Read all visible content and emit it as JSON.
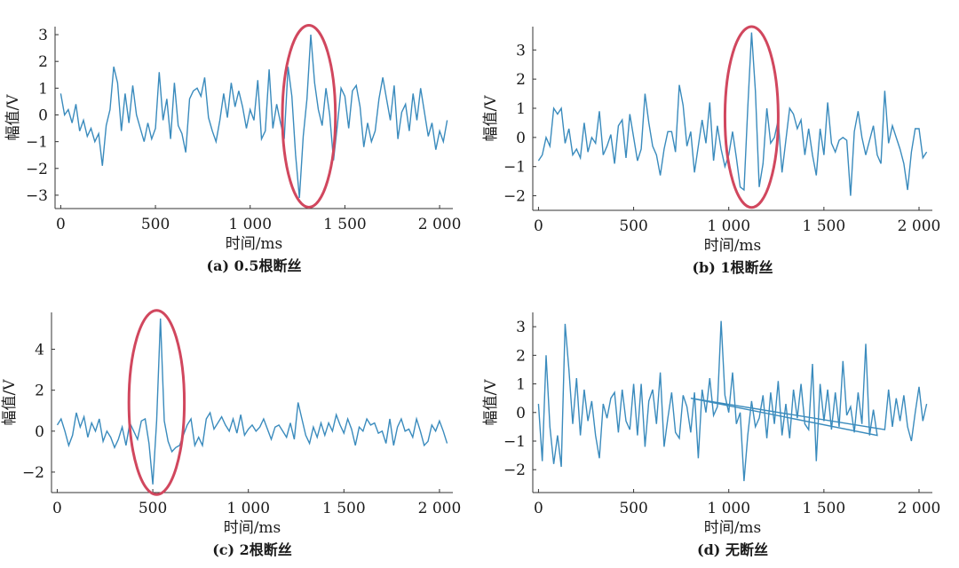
{
  "style": {
    "line_color": "#3a8bbd",
    "highlight_color": "#d1475e"
  },
  "chart_data": [
    {
      "id": "a",
      "type": "line",
      "caption": "(a) 0.5根断丝",
      "xlabel": "时间/ms",
      "ylabel": "幅值/V",
      "xlim": [
        -30,
        2070
      ],
      "ylim": [
        -3.5,
        3.3
      ],
      "xticks": [
        0,
        500,
        1000,
        1500,
        2000
      ],
      "xtick_labels": [
        "0",
        "500",
        "1 000",
        "1 500",
        "2 000"
      ],
      "yticks": [
        -3,
        -2,
        -1,
        0,
        1,
        2,
        3
      ],
      "ytick_labels": [
        "−3",
        "−2",
        "−1",
        "0",
        "1",
        "2",
        "3"
      ],
      "highlight": {
        "cx": 1310,
        "cy": -0.05,
        "rx": 140,
        "ry": 3.4
      },
      "series": [
        {
          "x": [
            0,
            20,
            40,
            60,
            80,
            100,
            120,
            140,
            160,
            180,
            200,
            220,
            240,
            260,
            280,
            300,
            320,
            340,
            360,
            380,
            400,
            420,
            440,
            460,
            480,
            500,
            520,
            540,
            560,
            580,
            600,
            620,
            640,
            660,
            680,
            700,
            720,
            740,
            760,
            780,
            800,
            820,
            840,
            860,
            880,
            900,
            920,
            940,
            960,
            980,
            1000,
            1020,
            1040,
            1060,
            1080,
            1100,
            1120,
            1140,
            1160,
            1180,
            1200,
            1220,
            1240,
            1260,
            1280,
            1300,
            1320,
            1340,
            1360,
            1380,
            1400,
            1420,
            1440,
            1460,
            1480,
            1500,
            1520,
            1540,
            1560,
            1580,
            1600,
            1620,
            1640,
            1660,
            1680,
            1700,
            1720,
            1740,
            1760,
            1780,
            1800,
            1820,
            1840,
            1860,
            1880,
            1900,
            1920,
            1940,
            1960,
            1980,
            2000,
            2020,
            2040
          ],
          "y": [
            0.8,
            0.0,
            0.2,
            -0.3,
            0.4,
            -0.6,
            -0.2,
            -0.8,
            -0.5,
            -1.0,
            -0.7,
            -1.9,
            -0.4,
            0.2,
            1.8,
            1.2,
            -0.6,
            0.8,
            -0.3,
            1.1,
            0.0,
            -0.5,
            -1.0,
            -0.3,
            -0.9,
            -0.5,
            1.6,
            -0.2,
            0.6,
            -0.9,
            1.2,
            -0.4,
            -0.7,
            -1.4,
            0.6,
            0.9,
            1.0,
            0.7,
            1.4,
            -0.1,
            -0.6,
            -1.0,
            -0.2,
            0.8,
            -0.1,
            1.2,
            0.3,
            0.9,
            0.3,
            -0.5,
            0.2,
            -0.2,
            1.3,
            -0.9,
            -0.6,
            1.7,
            -0.5,
            0.4,
            -0.3,
            -0.9,
            1.8,
            0.7,
            -1.5,
            -3.1,
            -0.8,
            0.6,
            3.0,
            1.2,
            0.2,
            -0.4,
            1.0,
            0.0,
            -1.7,
            -0.4,
            1.0,
            0.7,
            -0.5,
            0.9,
            1.1,
            0.3,
            -1.2,
            -0.3,
            -1.0,
            -0.6,
            0.6,
            1.4,
            0.6,
            -0.2,
            1.1,
            -0.9,
            0.1,
            0.4,
            -0.6,
            0.8,
            -0.2,
            1.0,
            0.1,
            -0.8,
            -0.3,
            -1.3,
            -0.6,
            -1.0,
            -0.2
          ]
        }
      ]
    },
    {
      "id": "b",
      "type": "line",
      "caption": "(b) 1根断丝",
      "xlabel": "时间/ms",
      "ylabel": "幅值/V",
      "xlim": [
        -30,
        2070
      ],
      "ylim": [
        -2.5,
        3.8
      ],
      "xticks": [
        0,
        500,
        1000,
        1500,
        2000
      ],
      "xtick_labels": [
        "0",
        "500",
        "1 000",
        "1 500",
        "2 000"
      ],
      "yticks": [
        -2,
        -1,
        0,
        1,
        2,
        3
      ],
      "ytick_labels": [
        "−2",
        "−1",
        "0",
        "1",
        "2",
        "3"
      ],
      "highlight": {
        "cx": 1120,
        "cy": 0.7,
        "rx": 140,
        "ry": 3.1
      },
      "series": [
        {
          "x": [
            0,
            20,
            40,
            60,
            80,
            100,
            120,
            140,
            160,
            180,
            200,
            220,
            240,
            260,
            280,
            300,
            320,
            340,
            360,
            380,
            400,
            420,
            440,
            460,
            480,
            500,
            520,
            540,
            560,
            580,
            600,
            620,
            640,
            660,
            680,
            700,
            720,
            740,
            760,
            780,
            800,
            820,
            840,
            860,
            880,
            900,
            920,
            940,
            960,
            980,
            1000,
            1020,
            1040,
            1060,
            1080,
            1100,
            1120,
            1140,
            1160,
            1180,
            1200,
            1220,
            1240,
            1260,
            1280,
            1300,
            1320,
            1340,
            1360,
            1380,
            1400,
            1420,
            1440,
            1460,
            1480,
            1500,
            1520,
            1540,
            1560,
            1580,
            1600,
            1620,
            1640,
            1660,
            1680,
            1700,
            1720,
            1740,
            1760,
            1780,
            1800,
            1820,
            1840,
            1860,
            1880,
            1900,
            1920,
            1940,
            1960,
            1980,
            2000,
            2020,
            2040
          ],
          "y": [
            -0.8,
            -0.6,
            0.0,
            -0.3,
            1.0,
            0.8,
            1.0,
            -0.2,
            0.3,
            -0.6,
            -0.4,
            -0.7,
            0.5,
            -0.5,
            0.0,
            -0.2,
            0.9,
            -0.6,
            -0.3,
            0.1,
            -0.9,
            0.4,
            0.6,
            -0.7,
            0.8,
            0.0,
            -0.8,
            -0.4,
            1.5,
            0.5,
            -0.3,
            -0.6,
            -1.3,
            -0.4,
            0.2,
            0.2,
            -0.5,
            1.8,
            1.1,
            -0.3,
            0.2,
            -1.2,
            -0.3,
            0.6,
            -0.2,
            1.2,
            -0.8,
            0.4,
            -0.4,
            -1.0,
            -0.6,
            0.2,
            -0.7,
            -1.7,
            -1.8,
            1.0,
            3.6,
            1.6,
            -1.7,
            -0.9,
            1.0,
            -0.2,
            0.0,
            0.6,
            -1.2,
            -0.1,
            1.0,
            0.8,
            0.3,
            0.6,
            -0.6,
            0.3,
            -0.6,
            -1.3,
            0.3,
            -0.6,
            1.2,
            -0.2,
            -0.5,
            -0.1,
            0.0,
            -0.1,
            -2.0,
            0.2,
            0.9,
            0.0,
            -0.6,
            -0.1,
            0.4,
            -0.6,
            -0.9,
            1.6,
            -0.2,
            0.4,
            0.0,
            -0.4,
            -0.9,
            -1.8,
            -0.5,
            0.3,
            0.3,
            -0.7,
            -0.5
          ]
        }
      ]
    },
    {
      "id": "c",
      "type": "line",
      "caption": "(c) 2根断丝",
      "xlabel": "时间/ms",
      "ylabel": "幅值/V",
      "xlim": [
        -30,
        2070
      ],
      "ylim": [
        -3.0,
        5.8
      ],
      "xticks": [
        0,
        500,
        1000,
        1500,
        2000
      ],
      "xtick_labels": [
        "0",
        "500",
        "1 000",
        "1 500",
        "2 000"
      ],
      "yticks": [
        -2,
        0,
        2,
        4
      ],
      "ytick_labels": [
        "−2",
        "0",
        "2",
        "4"
      ],
      "highlight": {
        "cx": 520,
        "cy": 1.4,
        "rx": 145,
        "ry": 4.5
      },
      "series": [
        {
          "x": [
            0,
            20,
            40,
            60,
            80,
            100,
            120,
            140,
            160,
            180,
            200,
            220,
            240,
            260,
            280,
            300,
            320,
            340,
            360,
            380,
            400,
            420,
            440,
            460,
            480,
            500,
            520,
            540,
            560,
            580,
            600,
            620,
            640,
            660,
            680,
            700,
            720,
            740,
            760,
            780,
            800,
            820,
            840,
            860,
            880,
            900,
            920,
            940,
            960,
            980,
            1000,
            1020,
            1040,
            1060,
            1080,
            1100,
            1120,
            1140,
            1160,
            1180,
            1200,
            1220,
            1240,
            1260,
            1280,
            1300,
            1320,
            1340,
            1360,
            1380,
            1400,
            1420,
            1440,
            1460,
            1480,
            1500,
            1520,
            1540,
            1560,
            1580,
            1600,
            1620,
            1640,
            1660,
            1680,
            1700,
            1720,
            1740,
            1760,
            1780,
            1800,
            1820,
            1840,
            1860,
            1880,
            1900,
            1920,
            1940,
            1960,
            1980,
            2000,
            2020,
            2040
          ],
          "y": [
            0.3,
            0.6,
            0.0,
            -0.7,
            -0.2,
            0.9,
            0.2,
            0.7,
            -0.3,
            0.4,
            0.0,
            0.6,
            -0.5,
            0.0,
            -0.3,
            -0.8,
            -0.4,
            0.2,
            -0.7,
            0.4,
            0.0,
            -0.4,
            0.5,
            0.6,
            -0.6,
            -2.6,
            0.5,
            5.5,
            0.5,
            -0.5,
            -1.0,
            -0.8,
            -0.7,
            -0.2,
            0.3,
            0.6,
            -0.7,
            -0.3,
            -0.7,
            0.6,
            0.9,
            0.1,
            0.4,
            0.7,
            0.3,
            0.0,
            0.6,
            -0.1,
            0.8,
            -0.2,
            0.1,
            0.3,
            0.0,
            0.2,
            0.6,
            0.1,
            -0.4,
            0.2,
            0.3,
            0.0,
            -0.3,
            0.4,
            -0.4,
            1.4,
            0.6,
            -0.2,
            -0.6,
            0.2,
            -0.3,
            0.4,
            -0.2,
            0.4,
            0.0,
            0.8,
            0.3,
            -0.1,
            0.6,
            0.1,
            -0.7,
            0.2,
            0.0,
            0.6,
            0.3,
            0.4,
            -0.1,
            0.0,
            -0.6,
            0.6,
            -0.7,
            0.2,
            0.6,
            0.0,
            0.1,
            -0.3,
            0.6,
            0.0,
            -0.7,
            -0.5,
            0.3,
            0.0,
            0.5,
            0.0,
            -0.6
          ]
        }
      ]
    },
    {
      "id": "d",
      "type": "line",
      "caption": "(d) 无断丝",
      "xlabel": "时间/ms",
      "ylabel": "幅值/V",
      "xlim": [
        -30,
        2070
      ],
      "ylim": [
        -2.8,
        3.5
      ],
      "xticks": [
        0,
        500,
        1000,
        1500,
        2000
      ],
      "xtick_labels": [
        "0",
        "500",
        "1 000",
        "1 500",
        "2 000"
      ],
      "yticks": [
        -2,
        -1,
        0,
        1,
        2,
        3
      ],
      "ytick_labels": [
        "−2",
        "−1",
        "0",
        "1",
        "2",
        "3"
      ],
      "series": [
        {
          "x": [
            0,
            20,
            40,
            60,
            80,
            100,
            120,
            140,
            160,
            180,
            200,
            220,
            240,
            260,
            280,
            300,
            320,
            340,
            360,
            380,
            400,
            420,
            440,
            460,
            480,
            500,
            520,
            540,
            560,
            580,
            600,
            620,
            640,
            660,
            680,
            700,
            720,
            740,
            760,
            780,
            800,
            820,
            840,
            860,
            880,
            900,
            920,
            940,
            960,
            980,
            1000,
            1020,
            1040,
            1060,
            1080,
            1100,
            1120,
            1140,
            1160,
            1180,
            1200,
            1220,
            1240,
            1260,
            1280,
            1300,
            1320,
            1340,
            1360,
            1380,
            1400,
            1420,
            1440,
            1460,
            1480,
            1500,
            1520,
            1540,
            1560,
            1580,
            1600,
            1620,
            1640,
            1660,
            1680,
            1700,
            1720,
            1740,
            1760,
            1780,
            800,
            1820,
            1840,
            1860,
            1880,
            1900,
            1920,
            1940,
            1960,
            1980,
            2000,
            2020,
            2040
          ],
          "y": [
            0.3,
            -1.7,
            2.0,
            -0.5,
            -1.8,
            -0.8,
            -1.9,
            3.1,
            1.5,
            -0.4,
            1.2,
            -0.8,
            0.8,
            -0.3,
            0.4,
            -0.8,
            -1.6,
            0.3,
            -0.2,
            0.5,
            0.7,
            -0.7,
            0.8,
            -0.3,
            -0.6,
            1.0,
            -0.8,
            1.0,
            -1.2,
            0.4,
            0.8,
            -0.4,
            1.4,
            -1.2,
            -0.2,
            0.7,
            -0.7,
            -0.9,
            0.6,
            0.2,
            -0.7,
            0.7,
            -1.6,
            0.8,
            0.0,
            1.2,
            -0.1,
            0.2,
            3.2,
            0.6,
            0.0,
            1.4,
            -0.4,
            0.0,
            -2.4,
            -0.8,
            0.4,
            -0.5,
            -0.2,
            0.6,
            -0.9,
            0.7,
            -0.4,
            1.1,
            -0.8,
            0.3,
            -0.9,
            0.8,
            -0.2,
            1.0,
            -0.4,
            -0.6,
            1.7,
            -1.7,
            1.0,
            -0.3,
            0.8,
            -0.6,
            0.7,
            -0.5,
            1.8,
            -0.1,
            0.2,
            -0.7,
            0.7,
            -0.4,
            2.4,
            -0.8,
            0.1,
            -0.8,
            0.5,
            -0.6,
            0.8,
            -0.5,
            0.5,
            -0.3,
            0.6,
            -0.5,
            -1.0,
            0.0,
            0.9,
            -0.3,
            0.3
          ]
        }
      ]
    }
  ]
}
